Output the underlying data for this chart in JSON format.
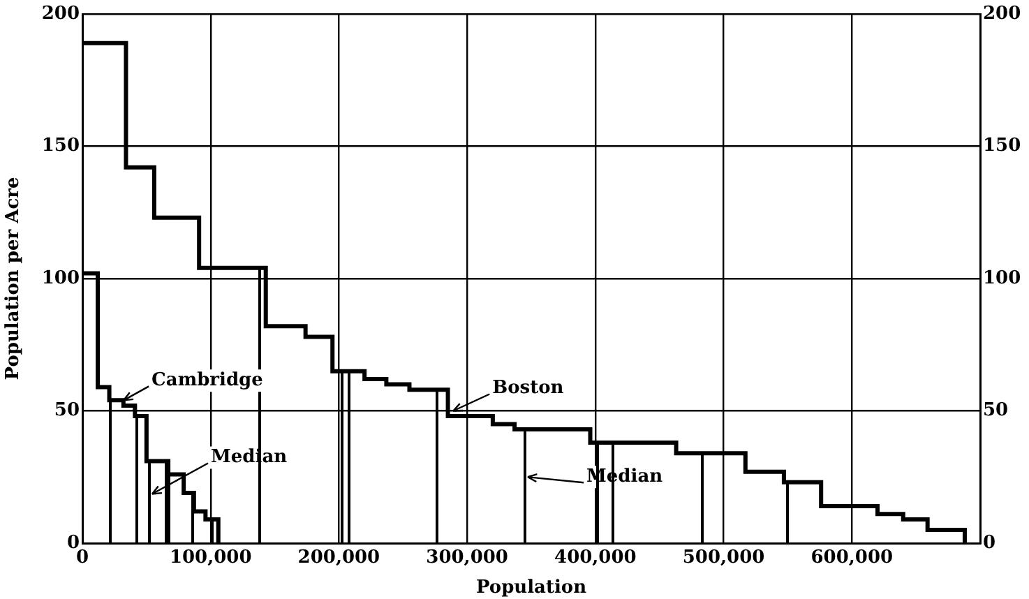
{
  "chart_data": {
    "type": "step",
    "xlabel": "Population",
    "ylabel": "Population per Acre",
    "xlim": [
      0,
      700000
    ],
    "xticks": [
      0,
      {
        "value": 100000,
        "label": "100,000"
      },
      {
        "value": 200000,
        "label": "200,000"
      },
      {
        "value": 300000,
        "label": "300,000"
      },
      {
        "value": 400000,
        "label": "400,000"
      },
      {
        "value": 500000,
        "label": "500,000"
      },
      {
        "value": 600000,
        "label": "600,000"
      }
    ],
    "ylim": [
      0,
      200
    ],
    "yticks": [
      0,
      50,
      100,
      150,
      200
    ],
    "y2lim": [
      0,
      200
    ],
    "y2ticks": [
      0,
      50,
      100,
      150,
      200
    ],
    "grid": true,
    "legend": false,
    "marker": "none",
    "line_style": "solid",
    "series": [
      {
        "color": "#000000",
        "x": [
          0,
          34000,
          56000,
          91000,
          143000,
          174000,
          195000,
          220000,
          237000,
          255000,
          285000,
          320000,
          337000,
          396000,
          463000,
          517000,
          547000,
          576000,
          620000,
          640000,
          659000,
          688000
        ],
        "values": [
          189,
          142,
          123,
          104,
          82,
          78,
          65,
          62,
          60,
          58,
          48,
          45,
          43,
          38,
          34,
          27,
          23,
          14,
          11,
          9,
          5,
          0
        ]
      },
      {
        "color": "#000000",
        "x": [
          0,
          12000,
          21000,
          32000,
          41000,
          50000,
          67000,
          79000,
          87000,
          96000,
          106000
        ],
        "values": [
          102,
          59,
          54,
          52,
          48,
          31,
          26,
          19,
          12,
          9,
          0
        ]
      }
    ],
    "ref_lines": [
      {
        "axis": "x",
        "value": 22000
      },
      {
        "axis": "x",
        "value": 42000
      },
      {
        "axis": "x",
        "value": 52000,
        "label": "Median"
      },
      {
        "axis": "x",
        "value": 65000
      },
      {
        "axis": "x",
        "value": 86000
      },
      {
        "axis": "x",
        "value": 101000
      },
      {
        "axis": "x",
        "value": 67000
      },
      {
        "axis": "x",
        "value": 138000
      },
      {
        "axis": "x",
        "value": 202000
      },
      {
        "axis": "x",
        "value": 208000
      },
      {
        "axis": "x",
        "value": 277000
      },
      {
        "axis": "x",
        "value": 345000,
        "label": "Median"
      },
      {
        "axis": "x",
        "value": 402000
      },
      {
        "axis": "x",
        "value": 414000
      },
      {
        "axis": "x",
        "value": 483000
      },
      {
        "axis": "x",
        "value": 550000
      }
    ],
    "annotations": [
      {
        "text": "Cambridge",
        "x": 30000,
        "y": 54
      },
      {
        "text": "Boston",
        "x": 287000,
        "y": 50
      }
    ]
  }
}
